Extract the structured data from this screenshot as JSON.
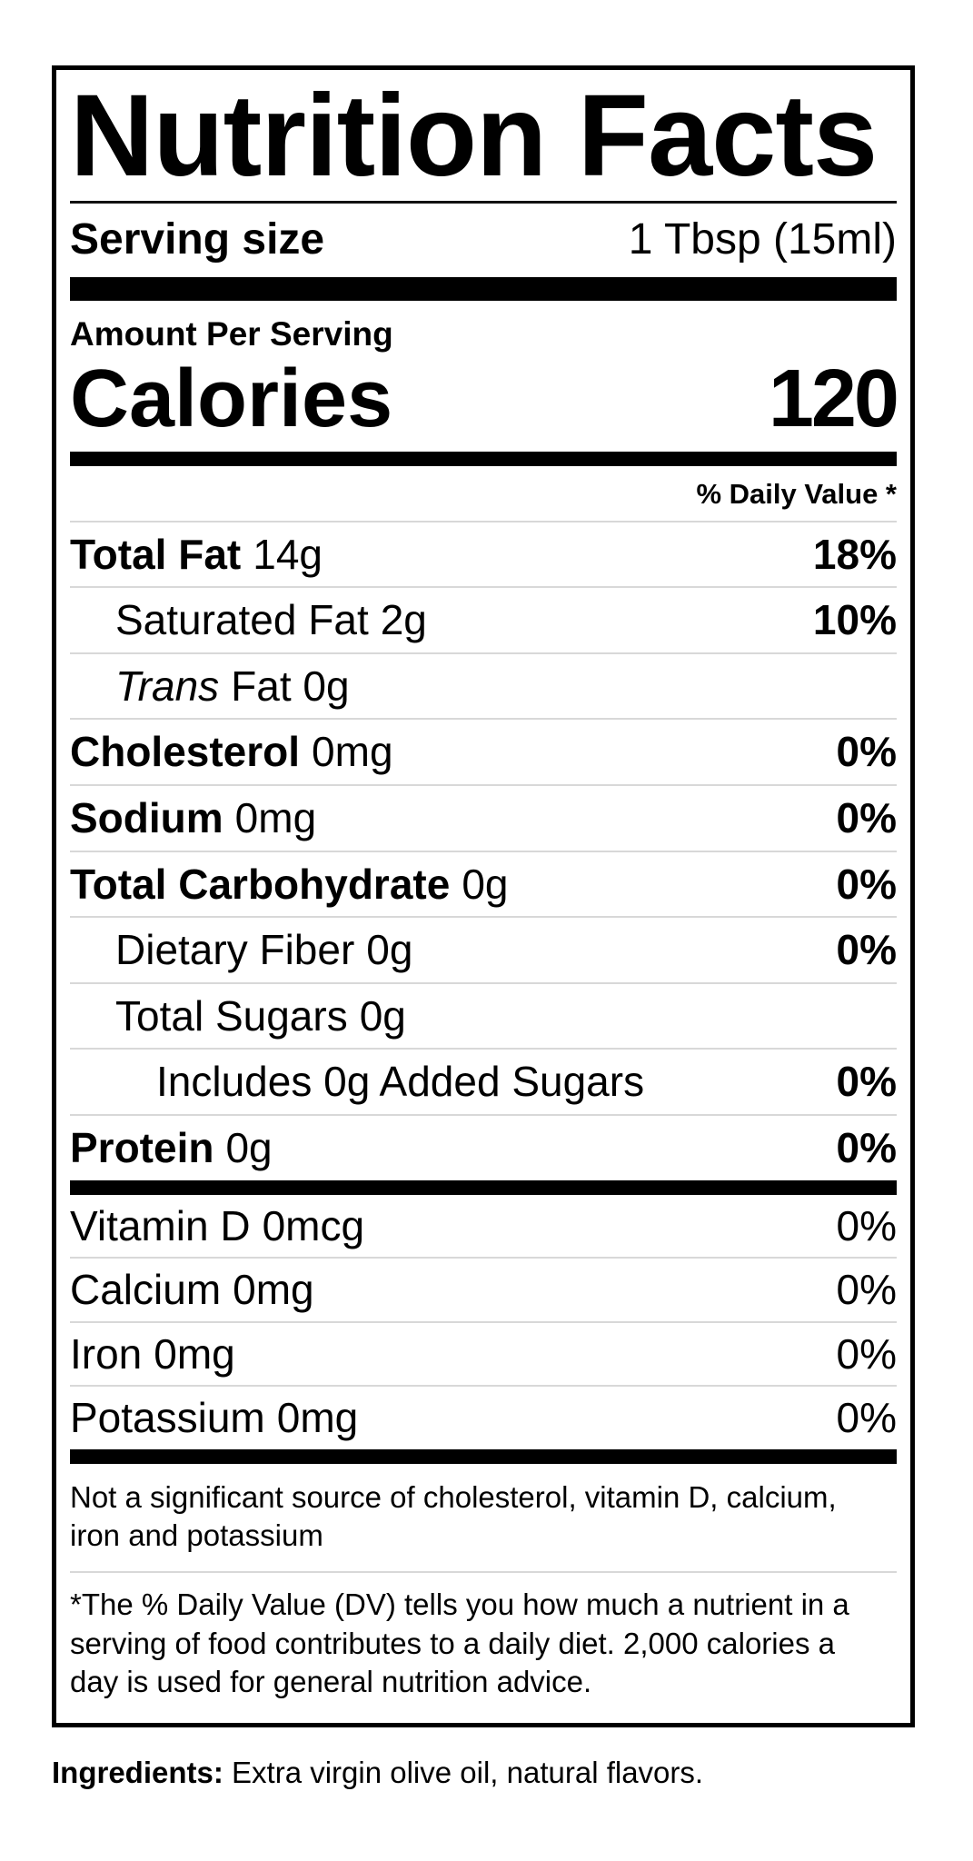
{
  "nutrition_label": {
    "title": "Nutrition Facts",
    "serving_size": {
      "label": "Serving size",
      "value": "1 Tbsp (15ml)"
    },
    "amount_per_serving": "Amount Per Serving",
    "calories": {
      "label": "Calories",
      "value": "120"
    },
    "daily_value_header": "% Daily Value *",
    "nutrients": [
      {
        "name": "Total Fat",
        "amount": "14g",
        "dv": "18%"
      },
      {
        "name": "Saturated Fat",
        "amount": "2g",
        "dv": "10%"
      },
      {
        "name": "Trans",
        "amount": "Fat 0g",
        "dv": ""
      },
      {
        "name": "Cholesterol",
        "amount": "0mg",
        "dv": "0%"
      },
      {
        "name": "Sodium",
        "amount": "0mg",
        "dv": "0%"
      },
      {
        "name": "Total Carbohydrate",
        "amount": "0g",
        "dv": "0%"
      },
      {
        "name": "Dietary Fiber",
        "amount": "0g",
        "dv": "0%"
      },
      {
        "name": "Total Sugars",
        "amount": "0g",
        "dv": ""
      },
      {
        "name": "Includes 0g Added Sugars",
        "amount": "",
        "dv": "0%"
      },
      {
        "name": "Protein",
        "amount": "0g",
        "dv": "0%"
      }
    ],
    "vitamins": [
      {
        "name": "Vitamin D",
        "amount": "0mcg",
        "dv": "0%"
      },
      {
        "name": "Calcium",
        "amount": "0mg",
        "dv": "0%"
      },
      {
        "name": "Iron",
        "amount": "0mg",
        "dv": "0%"
      },
      {
        "name": "Potassium",
        "amount": "0mg",
        "dv": "0%"
      }
    ],
    "disclaimer_lines": [
      "Not a significant source of cholesterol, vitamin D, calcium,",
      "iron and potassium"
    ],
    "footnote_lines": [
      "*The % Daily Value (DV) tells you how much a nutrient in a",
      "serving of food contributes to a daily diet. 2,000 calories a",
      "day is used for general nutrition advice."
    ],
    "ingredients": {
      "label": "Ingredients:",
      "value": " Extra virgin olive oil, natural flavors."
    }
  },
  "colors": {
    "text": "#000000",
    "background": "#ffffff",
    "hairline": "#d8d8d8",
    "bar": "#000000"
  }
}
